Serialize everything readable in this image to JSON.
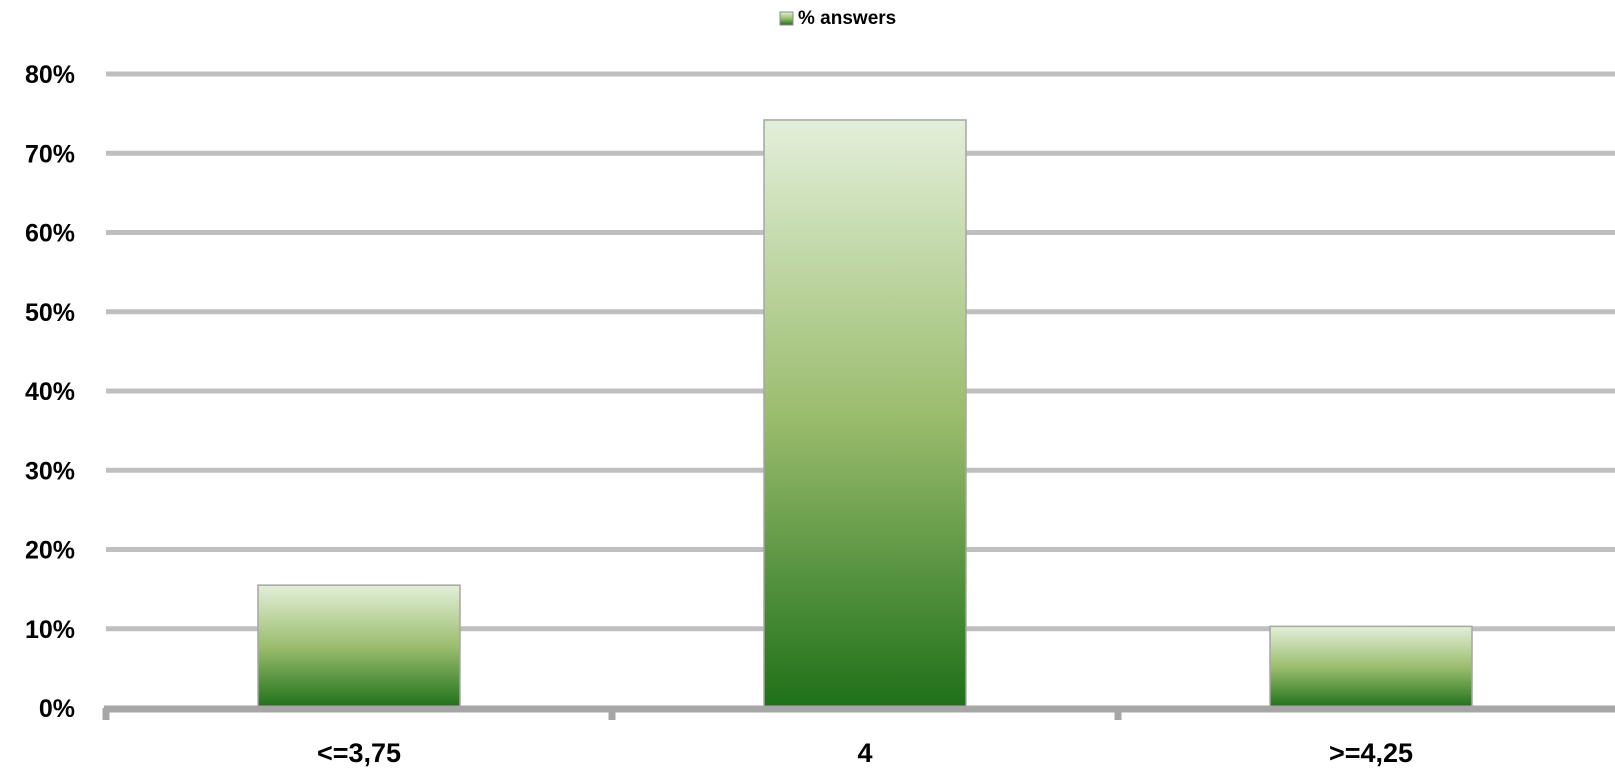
{
  "chart_data": {
    "type": "bar",
    "title": "",
    "xlabel": "",
    "ylabel": "",
    "categories": [
      "<=3,75",
      "4",
      ">=4,25"
    ],
    "series": [
      {
        "name": "% answers",
        "values": [
          15.5,
          74.2,
          10.3
        ]
      }
    ],
    "ylim": [
      0,
      80
    ],
    "yticks": [
      0,
      10,
      20,
      30,
      40,
      50,
      60,
      70,
      80
    ],
    "ytick_labels": [
      "0%",
      "10%",
      "20%",
      "30%",
      "40%",
      "50%",
      "60%",
      "70%",
      "80%"
    ],
    "value_suffix": "%",
    "grid": true,
    "legend_position": "top-center",
    "colors": {
      "bar_top": "#e3efd9",
      "bar_mid": "#9bbd6e",
      "bar_bottom": "#1e7018",
      "bar_border": "#a6a6a6",
      "gridline": "#bfbfbf",
      "axis": "#a6a6a6"
    }
  }
}
